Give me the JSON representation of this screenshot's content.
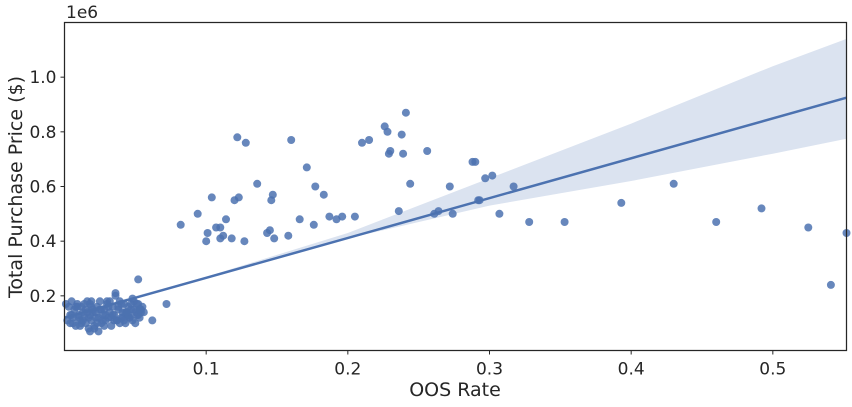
{
  "chart_data": {
    "type": "scatter",
    "title": "",
    "xlabel": "OOS Rate",
    "ylabel": "Total Purchase Price ($)",
    "y_offset_label": "1e6",
    "xlim": [
      0.0,
      0.552
    ],
    "ylim": [
      0.0,
      1.2
    ],
    "x_ticks": [
      0.1,
      0.2,
      0.3,
      0.4,
      0.5
    ],
    "x_tick_labels": [
      "0.1",
      "0.2",
      "0.3",
      "0.4",
      "0.5"
    ],
    "y_ticks": [
      0.2,
      0.4,
      0.6,
      0.8,
      1.0
    ],
    "y_tick_labels": [
      "0.2",
      "0.4",
      "0.6",
      "0.8",
      "1.0"
    ],
    "grid": false,
    "colors": {
      "points": "#4c72b0",
      "line": "#4c72b0",
      "band": "#dbe3f0",
      "frame": "#262626"
    },
    "regression": {
      "line": {
        "x": [
          0.0,
          0.552
        ],
        "y": [
          0.12,
          0.925
        ]
      },
      "ci_upper": {
        "x": [
          0.0,
          0.1,
          0.2,
          0.3,
          0.4,
          0.5,
          0.552
        ],
        "y": [
          0.112,
          0.27,
          0.43,
          0.63,
          0.83,
          1.04,
          1.14
        ]
      },
      "ci_lower": {
        "x": [
          0.0,
          0.1,
          0.2,
          0.3,
          0.4,
          0.5,
          0.552
        ],
        "y": [
          0.128,
          0.27,
          0.41,
          0.53,
          0.62,
          0.72,
          0.775
        ]
      }
    },
    "series": [
      {
        "x": [
          0.001,
          0.003,
          0.004,
          0.005,
          0.006,
          0.007,
          0.008,
          0.009,
          0.01,
          0.011,
          0.012,
          0.012,
          0.013,
          0.014,
          0.015,
          0.016,
          0.017,
          0.018,
          0.018,
          0.019,
          0.02,
          0.021,
          0.022,
          0.023,
          0.024,
          0.025,
          0.026,
          0.027,
          0.028,
          0.029,
          0.03,
          0.031,
          0.032,
          0.033,
          0.034,
          0.035,
          0.036,
          0.037,
          0.038,
          0.039,
          0.04,
          0.041,
          0.042,
          0.043,
          0.044,
          0.045,
          0.046,
          0.047,
          0.048,
          0.049,
          0.05,
          0.051,
          0.052,
          0.053,
          0.054,
          0.055,
          0.056,
          0.002,
          0.005,
          0.008,
          0.011,
          0.014,
          0.017,
          0.02,
          0.023,
          0.026,
          0.029,
          0.032,
          0.035,
          0.038,
          0.041,
          0.044,
          0.047,
          0.05,
          0.053,
          0.004,
          0.009,
          0.013,
          0.016,
          0.019,
          0.022,
          0.025,
          0.028,
          0.031,
          0.034,
          0.037,
          0.04,
          0.043,
          0.046,
          0.049,
          0.052,
          0.015,
          0.018,
          0.021,
          0.024,
          0.027,
          0.033,
          0.036,
          0.039,
          0.042,
          0.045,
          0.048,
          0.051,
          0.054,
          0.006,
          0.01,
          0.019,
          0.03,
          0.044,
          0.052,
          0.053,
          0.062,
          0.072,
          0.082,
          0.094,
          0.1,
          0.101,
          0.104,
          0.107,
          0.11,
          0.11,
          0.112,
          0.114,
          0.118,
          0.12,
          0.122,
          0.123,
          0.127,
          0.128,
          0.136,
          0.143,
          0.145,
          0.146,
          0.147,
          0.148,
          0.158,
          0.16,
          0.166,
          0.171,
          0.176,
          0.177,
          0.183,
          0.187,
          0.192,
          0.196,
          0.205,
          0.21,
          0.215,
          0.226,
          0.228,
          0.229,
          0.23,
          0.236,
          0.238,
          0.239,
          0.241,
          0.244,
          0.256,
          0.261,
          0.264,
          0.272,
          0.274,
          0.288,
          0.29,
          0.292,
          0.293,
          0.297,
          0.302,
          0.307,
          0.317,
          0.328,
          0.353,
          0.393,
          0.43,
          0.46,
          0.492,
          0.525,
          0.541,
          0.552
        ],
        "y": [
          0.17,
          0.16,
          0.1,
          0.18,
          0.12,
          0.15,
          0.09,
          0.17,
          0.13,
          0.11,
          0.16,
          0.1,
          0.14,
          0.12,
          0.15,
          0.18,
          0.08,
          0.13,
          0.17,
          0.11,
          0.15,
          0.09,
          0.14,
          0.16,
          0.12,
          0.18,
          0.1,
          0.13,
          0.15,
          0.11,
          0.17,
          0.12,
          0.14,
          0.09,
          0.16,
          0.13,
          0.2,
          0.11,
          0.15,
          0.18,
          0.12,
          0.14,
          0.17,
          0.1,
          0.13,
          0.16,
          0.12,
          0.15,
          0.11,
          0.18,
          0.14,
          0.13,
          0.17,
          0.12,
          0.15,
          0.16,
          0.14,
          0.11,
          0.13,
          0.16,
          0.09,
          0.17,
          0.12,
          0.14,
          0.1,
          0.15,
          0.13,
          0.18,
          0.11,
          0.16,
          0.12,
          0.14,
          0.17,
          0.1,
          0.15,
          0.13,
          0.16,
          0.11,
          0.14,
          0.18,
          0.12,
          0.15,
          0.09,
          0.16,
          0.13,
          0.11,
          0.17,
          0.14,
          0.12,
          0.15,
          0.13,
          0.1,
          0.07,
          0.08,
          0.07,
          0.11,
          0.12,
          0.21,
          0.1,
          0.11,
          0.13,
          0.19,
          0.17,
          0.14,
          0.1,
          0.12,
          0.16,
          0.18,
          0.14,
          0.26,
          0.15,
          0.11,
          0.17,
          0.46,
          0.5,
          0.4,
          0.43,
          0.56,
          0.45,
          0.45,
          0.41,
          0.42,
          0.48,
          0.41,
          0.55,
          0.78,
          0.56,
          0.4,
          0.76,
          0.61,
          0.43,
          0.44,
          0.55,
          0.57,
          0.41,
          0.42,
          0.77,
          0.48,
          0.67,
          0.46,
          0.6,
          0.57,
          0.49,
          0.48,
          0.49,
          0.49,
          0.76,
          0.77,
          0.82,
          0.8,
          0.72,
          0.73,
          0.51,
          0.79,
          0.72,
          0.87,
          0.61,
          0.73,
          0.5,
          0.51,
          0.6,
          0.5,
          0.69,
          0.69,
          0.55,
          0.55,
          0.63,
          0.64,
          0.5,
          0.6,
          0.47,
          0.47,
          0.54,
          0.61,
          0.47,
          0.52,
          0.45,
          0.24,
          0.43
        ]
      }
    ]
  }
}
